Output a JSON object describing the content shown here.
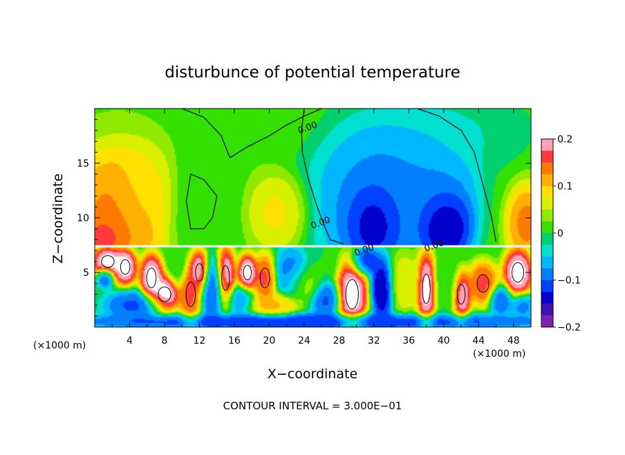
{
  "chart_data": {
    "type": "heatmap",
    "title": "disturbunce of potential temperature",
    "xlabel": "X−coordinate",
    "ylabel": "Z−coordinate",
    "x_unit_label": "(×1000 m)",
    "y_unit_label": "(×1000 m)",
    "footer": "CONTOUR INTERVAL = 3.000E−01",
    "xlim": [
      0,
      50
    ],
    "ylim": [
      0,
      20
    ],
    "x_ticks": [
      4,
      8,
      12,
      16,
      20,
      24,
      28,
      32,
      36,
      40,
      44,
      48
    ],
    "x_tick_labels": [
      "4",
      "8",
      "12",
      "16",
      "20",
      "24",
      "28",
      "32",
      "36",
      "40",
      "44",
      "48"
    ],
    "y_ticks": [
      5,
      10,
      15
    ],
    "y_tick_labels": [
      "5",
      "10",
      "15"
    ],
    "colorbar": {
      "min": -0.2,
      "max": 0.2,
      "ticks": [
        0.2,
        0.1,
        0,
        -0.1,
        -0.2
      ],
      "tick_labels": [
        "0.2",
        "0.1",
        "0",
        "−0.1",
        "−0.2"
      ],
      "colors": [
        "#ff9fb4",
        "#ff3a3a",
        "#ff7a00",
        "#ffb000",
        "#ffe000",
        "#d8f000",
        "#90ea00",
        "#33e000",
        "#00d070",
        "#00e0d0",
        "#00b8ff",
        "#0080ff",
        "#0040ff",
        "#0000cc",
        "#4010b0",
        "#8020b0"
      ]
    },
    "contour_labels": [
      {
        "text": "0.00",
        "x": 24.5,
        "y": 18.0
      },
      {
        "text": "0.00",
        "x": 26.0,
        "y": 9.3
      },
      {
        "text": "0.00",
        "x": 31.0,
        "y": 6.8
      },
      {
        "text": "0.00",
        "x": 39.0,
        "y": 7.2
      }
    ],
    "lower_layer_top": 7.4,
    "upper_field_blobs": [
      {
        "x": 2.5,
        "y": 10.0,
        "rx": 5.0,
        "ry": 5.5,
        "v": 0.15
      },
      {
        "x": 1.0,
        "y": 8.2,
        "rx": 1.8,
        "ry": 1.5,
        "v": 0.2
      },
      {
        "x": 5.5,
        "y": 12.5,
        "rx": 3.0,
        "ry": 3.5,
        "v": 0.08
      },
      {
        "x": 21.0,
        "y": 10.5,
        "rx": 3.0,
        "ry": 3.0,
        "v": 0.09
      },
      {
        "x": 12.5,
        "y": 11.0,
        "rx": 3.5,
        "ry": 5.0,
        "v": 0.0
      },
      {
        "x": 33.0,
        "y": 11.5,
        "rx": 7.5,
        "ry": 7.0,
        "v": -0.1
      },
      {
        "x": 32.0,
        "y": 9.5,
        "rx": 3.0,
        "ry": 3.5,
        "v": -0.19
      },
      {
        "x": 40.0,
        "y": 9.5,
        "rx": 3.0,
        "ry": 3.5,
        "v": -0.19
      },
      {
        "x": 39.0,
        "y": 14.0,
        "rx": 4.5,
        "ry": 4.5,
        "v": -0.08
      },
      {
        "x": 49.5,
        "y": 9.5,
        "rx": 2.0,
        "ry": 3.0,
        "v": 0.15
      },
      {
        "x": 43.0,
        "y": 18.0,
        "rx": 6.0,
        "ry": 3.0,
        "v": -0.03
      },
      {
        "x": 17.0,
        "y": 19.0,
        "rx": 6.0,
        "ry": 2.5,
        "v": 0.02
      }
    ],
    "lower_field_blobs": [
      {
        "x": 1.5,
        "y": 6.0,
        "rx": 1.6,
        "ry": 1.2,
        "v": 0.25
      },
      {
        "x": 3.5,
        "y": 5.5,
        "rx": 1.2,
        "ry": 1.5,
        "v": 0.25
      },
      {
        "x": 1.2,
        "y": 4.5,
        "rx": 0.8,
        "ry": 0.8,
        "v": -0.12
      },
      {
        "x": 6.5,
        "y": 4.5,
        "rx": 1.2,
        "ry": 2.0,
        "v": 0.25
      },
      {
        "x": 8.0,
        "y": 3.0,
        "rx": 1.6,
        "ry": 1.5,
        "v": 0.25
      },
      {
        "x": 4.5,
        "y": 2.0,
        "rx": 3.0,
        "ry": 1.2,
        "v": -0.12
      },
      {
        "x": 9.5,
        "y": 5.5,
        "rx": 0.9,
        "ry": 1.6,
        "v": 0.0
      },
      {
        "x": 11.0,
        "y": 3.0,
        "rx": 1.2,
        "ry": 2.5,
        "v": 0.18
      },
      {
        "x": 12.0,
        "y": 5.0,
        "rx": 1.0,
        "ry": 1.8,
        "v": 0.25
      },
      {
        "x": 13.5,
        "y": 3.5,
        "rx": 1.5,
        "ry": 2.5,
        "v": -0.12
      },
      {
        "x": 15.0,
        "y": 4.5,
        "rx": 1.0,
        "ry": 2.5,
        "v": 0.25
      },
      {
        "x": 17.5,
        "y": 5.0,
        "rx": 1.0,
        "ry": 1.5,
        "v": 0.25
      },
      {
        "x": 16.5,
        "y": 2.5,
        "rx": 1.5,
        "ry": 1.2,
        "v": -0.08
      },
      {
        "x": 19.5,
        "y": 4.5,
        "rx": 1.2,
        "ry": 2.0,
        "v": 0.18
      },
      {
        "x": 20.5,
        "y": 2.0,
        "rx": 2.5,
        "ry": 1.0,
        "v": 0.12
      },
      {
        "x": 22.5,
        "y": 5.0,
        "rx": 1.8,
        "ry": 2.0,
        "v": -0.1
      },
      {
        "x": 24.0,
        "y": 4.0,
        "rx": 1.8,
        "ry": 1.5,
        "v": 0.05
      },
      {
        "x": 26.0,
        "y": 5.5,
        "rx": 1.5,
        "ry": 1.2,
        "v": 0.0
      },
      {
        "x": 26.5,
        "y": 2.5,
        "rx": 1.5,
        "ry": 1.5,
        "v": -0.12
      },
      {
        "x": 29.5,
        "y": 3.0,
        "rx": 1.6,
        "ry": 3.0,
        "v": 0.25
      },
      {
        "x": 31.0,
        "y": 6.0,
        "rx": 1.5,
        "ry": 1.2,
        "v": -0.14
      },
      {
        "x": 33.0,
        "y": 3.5,
        "rx": 1.2,
        "ry": 2.5,
        "v": -0.18
      },
      {
        "x": 35.5,
        "y": 4.0,
        "rx": 1.8,
        "ry": 2.5,
        "v": 0.08
      },
      {
        "x": 38.0,
        "y": 3.5,
        "rx": 1.0,
        "ry": 3.0,
        "v": 0.25
      },
      {
        "x": 40.5,
        "y": 4.0,
        "rx": 1.5,
        "ry": 2.5,
        "v": 0.0
      },
      {
        "x": 42.0,
        "y": 3.0,
        "rx": 1.0,
        "ry": 2.0,
        "v": 0.25
      },
      {
        "x": 44.5,
        "y": 4.0,
        "rx": 1.5,
        "ry": 1.8,
        "v": 0.18
      },
      {
        "x": 46.5,
        "y": 2.5,
        "rx": 1.2,
        "ry": 1.2,
        "v": -0.12
      },
      {
        "x": 48.5,
        "y": 5.0,
        "rx": 1.5,
        "ry": 2.0,
        "v": 0.25
      },
      {
        "x": 49.0,
        "y": 2.0,
        "rx": 1.2,
        "ry": 1.0,
        "v": -0.1
      },
      {
        "x": 25.0,
        "y": 0.5,
        "rx": 25.0,
        "ry": 0.7,
        "v": -0.14
      }
    ],
    "upper_contours": [
      [
        [
          10.0,
          20.0
        ],
        [
          12.5,
          19.2
        ],
        [
          14.5,
          17.5
        ],
        [
          15.5,
          15.5
        ],
        [
          17.5,
          16.5
        ],
        [
          20.0,
          17.5
        ],
        [
          22.0,
          18.5
        ],
        [
          24.0,
          19.3
        ],
        [
          26.0,
          20.0
        ]
      ],
      [
        [
          24.0,
          20.0
        ],
        [
          23.7,
          18.0
        ],
        [
          23.8,
          16.0
        ],
        [
          24.5,
          13.5
        ],
        [
          25.5,
          11.0
        ],
        [
          26.2,
          9.5
        ],
        [
          27.0,
          8.0
        ],
        [
          28.5,
          7.6
        ]
      ],
      [
        [
          37.0,
          20.0
        ],
        [
          39.5,
          19.3
        ],
        [
          42.0,
          18.0
        ],
        [
          43.5,
          16.0
        ],
        [
          44.5,
          13.0
        ],
        [
          45.5,
          10.0
        ],
        [
          46.0,
          7.8
        ]
      ],
      [
        [
          11.0,
          9.0
        ],
        [
          10.5,
          11.5
        ],
        [
          11.0,
          14.0
        ],
        [
          12.5,
          13.5
        ],
        [
          14.0,
          12.0
        ],
        [
          13.5,
          10.0
        ],
        [
          12.5,
          9.0
        ],
        [
          11.0,
          9.0
        ]
      ]
    ]
  }
}
